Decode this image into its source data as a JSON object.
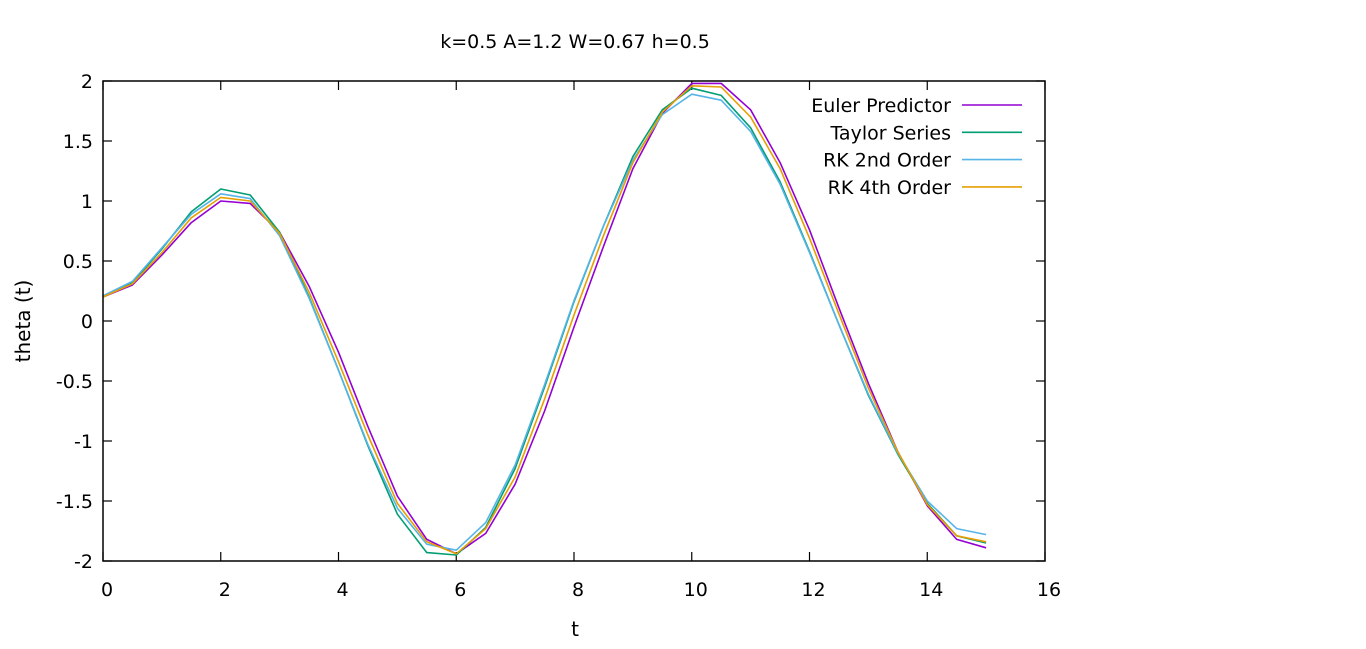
{
  "chart_data": {
    "type": "line",
    "title": "k=0.5 A=1.2 W=0.67 h=0.5",
    "xlabel": "t",
    "ylabel": "theta (t)",
    "xlim": [
      0,
      16
    ],
    "ylim": [
      -2,
      2
    ],
    "xticks": [
      0,
      2,
      4,
      6,
      8,
      10,
      12,
      14,
      16
    ],
    "yticks": [
      -2,
      -1.5,
      -1,
      -0.5,
      0,
      0.5,
      1,
      1.5,
      2
    ],
    "grid": false,
    "legend_position": "top-right",
    "x": [
      0,
      0.5,
      1,
      1.5,
      2,
      2.5,
      3,
      3.5,
      4,
      4.5,
      5,
      5.5,
      6,
      6.5,
      7,
      7.5,
      8,
      8.5,
      9,
      9.5,
      10,
      10.5,
      11,
      11.5,
      12,
      12.5,
      13,
      13.5,
      14,
      14.5,
      15
    ],
    "series": [
      {
        "name": "Euler Predictor",
        "color": "#9400d3",
        "values": [
          0.2,
          0.3,
          0.55,
          0.82,
          1.0,
          0.98,
          0.74,
          0.29,
          -0.26,
          -0.88,
          -1.46,
          -1.82,
          -1.94,
          -1.77,
          -1.36,
          -0.75,
          -0.05,
          0.62,
          1.27,
          1.73,
          1.98,
          1.98,
          1.76,
          1.32,
          0.76,
          0.11,
          -0.52,
          -1.09,
          -1.54,
          -1.82,
          -1.89
        ]
      },
      {
        "name": "Taylor Series",
        "color": "#009e73",
        "values": [
          0.2,
          0.32,
          0.6,
          0.91,
          1.1,
          1.05,
          0.74,
          0.2,
          -0.41,
          -1.04,
          -1.61,
          -1.93,
          -1.95,
          -1.72,
          -1.23,
          -0.55,
          0.16,
          0.79,
          1.37,
          1.76,
          1.94,
          1.88,
          1.61,
          1.16,
          0.58,
          -0.03,
          -0.62,
          -1.11,
          -1.52,
          -1.79,
          -1.85
        ]
      },
      {
        "name": "RK 2nd Order",
        "color": "#56b4e9",
        "values": [
          0.21,
          0.33,
          0.61,
          0.89,
          1.06,
          1.02,
          0.71,
          0.19,
          -0.41,
          -1.03,
          -1.56,
          -1.86,
          -1.91,
          -1.68,
          -1.2,
          -0.53,
          0.17,
          0.79,
          1.34,
          1.72,
          1.89,
          1.84,
          1.58,
          1.14,
          0.57,
          -0.03,
          -0.61,
          -1.1,
          -1.5,
          -1.73,
          -1.78
        ]
      },
      {
        "name": "RK 4th Order",
        "color": "#e69f00",
        "values": [
          0.2,
          0.31,
          0.57,
          0.86,
          1.03,
          1.0,
          0.73,
          0.24,
          -0.34,
          -0.95,
          -1.52,
          -1.84,
          -1.94,
          -1.73,
          -1.3,
          -0.65,
          0.05,
          0.71,
          1.32,
          1.74,
          1.96,
          1.95,
          1.7,
          1.27,
          0.69,
          0.06,
          -0.56,
          -1.09,
          -1.53,
          -1.79,
          -1.84
        ]
      }
    ]
  }
}
